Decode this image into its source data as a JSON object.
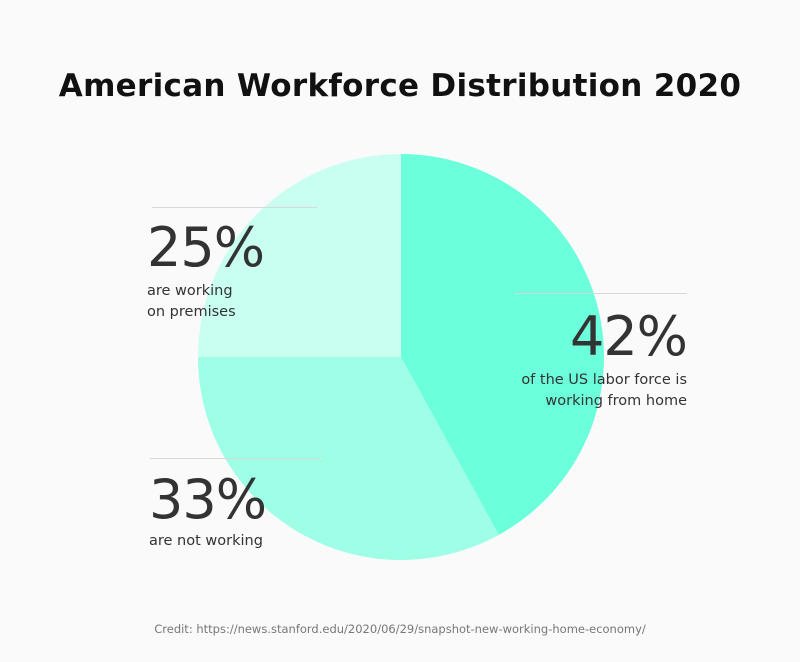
{
  "chart_data": {
    "type": "pie",
    "title": "American Workforce Distribution 2020",
    "slices": [
      {
        "value": 42,
        "label": "42%",
        "description": [
          "of the US labor force is",
          "working from home"
        ],
        "color": "#6bffdb"
      },
      {
        "value": 33,
        "label": "33%",
        "description": [
          "are not working"
        ],
        "color": "#9effe6"
      },
      {
        "value": 25,
        "label": "25%",
        "description": [
          "are working",
          "on premises"
        ],
        "color": "#c9fff1"
      }
    ],
    "start_angle": "top",
    "direction": "clockwise"
  },
  "credit": "Credit: https://news.stanford.edu/2020/06/29/snapshot-new-working-home-economy/"
}
